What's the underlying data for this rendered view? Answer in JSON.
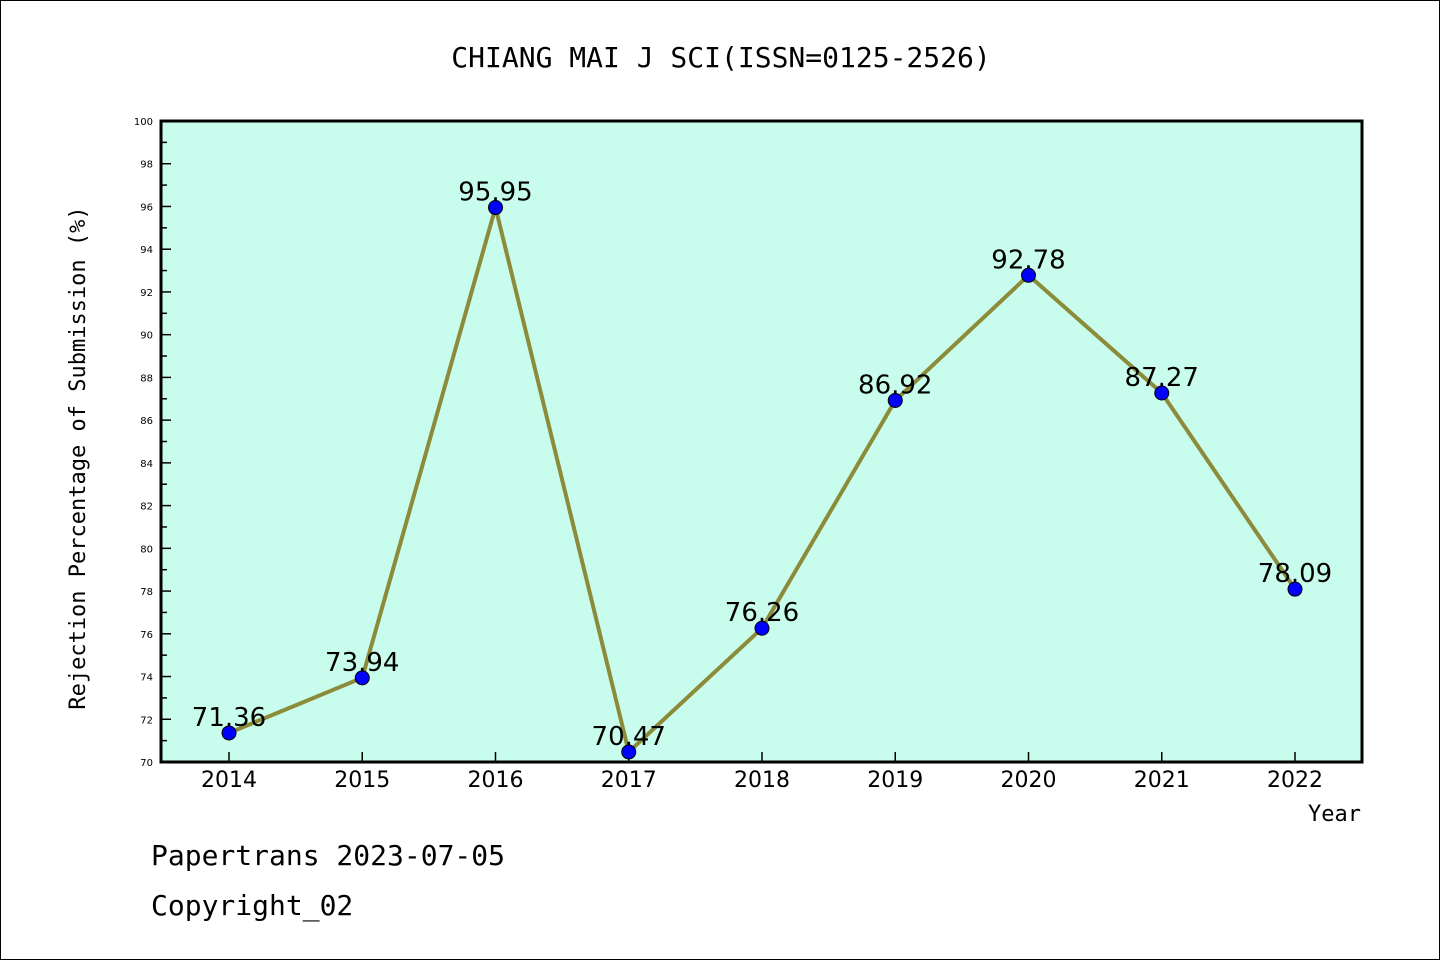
{
  "chart_data": {
    "type": "line",
    "title": "CHIANG MAI J SCI(ISSN=0125-2526)",
    "xlabel": "Year",
    "ylabel": "Rejection Percentage of Submission (%)",
    "categories": [
      "2014",
      "2015",
      "2016",
      "2017",
      "2018",
      "2019",
      "2020",
      "2021",
      "2022"
    ],
    "values": [
      71.36,
      73.94,
      95.95,
      70.47,
      76.26,
      86.92,
      92.78,
      87.27,
      78.09
    ],
    "data_labels": [
      "71.36",
      "73.94",
      "95.95",
      "70.47",
      "76.26",
      "86.92",
      "92.78",
      "87.27",
      "78.09"
    ],
    "ylim": [
      70,
      100
    ],
    "yticks": [
      "70",
      "72",
      "74",
      "76",
      "78",
      "80",
      "82",
      "84",
      "86",
      "88",
      "90",
      "92",
      "94",
      "96",
      "98",
      "100"
    ],
    "grid": false,
    "legend": "none",
    "colors": {
      "plot_background": "#c8fdee",
      "line": "#8b8b3a",
      "marker": "#0000ff"
    }
  },
  "footer": {
    "line1": "Papertrans 2023-07-05",
    "line2": "Copyright_02"
  }
}
